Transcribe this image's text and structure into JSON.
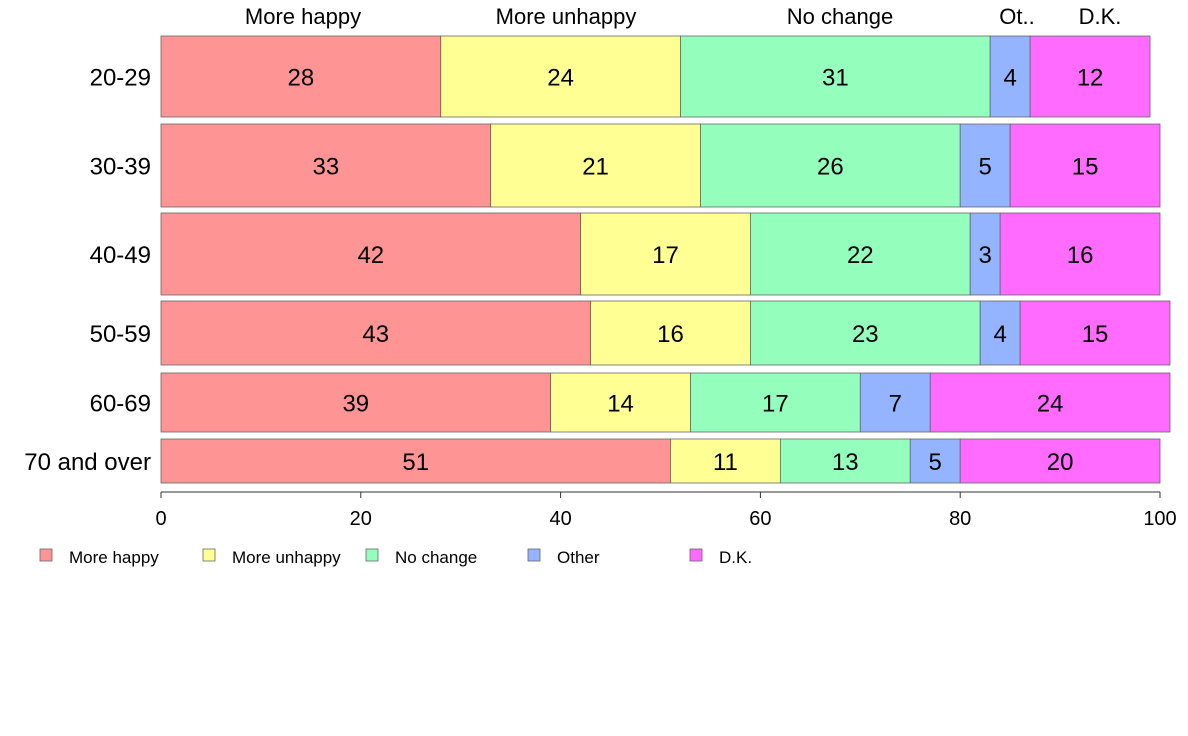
{
  "chart_data": {
    "type": "bar",
    "orientation": "horizontal",
    "stacked": true,
    "categories": [
      "20-29",
      "30-39",
      "40-49",
      "50-59",
      "60-69",
      "70 and over"
    ],
    "series": [
      {
        "name": "More happy",
        "color": "#ff9494",
        "values": [
          28,
          33,
          42,
          43,
          39,
          51
        ]
      },
      {
        "name": "More unhappy",
        "color": "#ffff94",
        "values": [
          24,
          21,
          17,
          16,
          14,
          11
        ]
      },
      {
        "name": "No change",
        "color": "#94ffbd",
        "values": [
          31,
          26,
          22,
          23,
          17,
          13
        ]
      },
      {
        "name": "Other",
        "color": "#94b4ff",
        "values": [
          4,
          5,
          3,
          4,
          7,
          5
        ]
      },
      {
        "name": "D.K.",
        "color": "#ff6bff",
        "values": [
          12,
          15,
          16,
          15,
          24,
          20
        ]
      }
    ],
    "header_labels": [
      "More happy",
      "More unhappy",
      "No change",
      "Ot..",
      "D.K."
    ],
    "xlim": [
      0,
      100
    ],
    "xticks": [
      0,
      20,
      40,
      60,
      80,
      100
    ],
    "grid": false,
    "legend_position": "bottom"
  }
}
